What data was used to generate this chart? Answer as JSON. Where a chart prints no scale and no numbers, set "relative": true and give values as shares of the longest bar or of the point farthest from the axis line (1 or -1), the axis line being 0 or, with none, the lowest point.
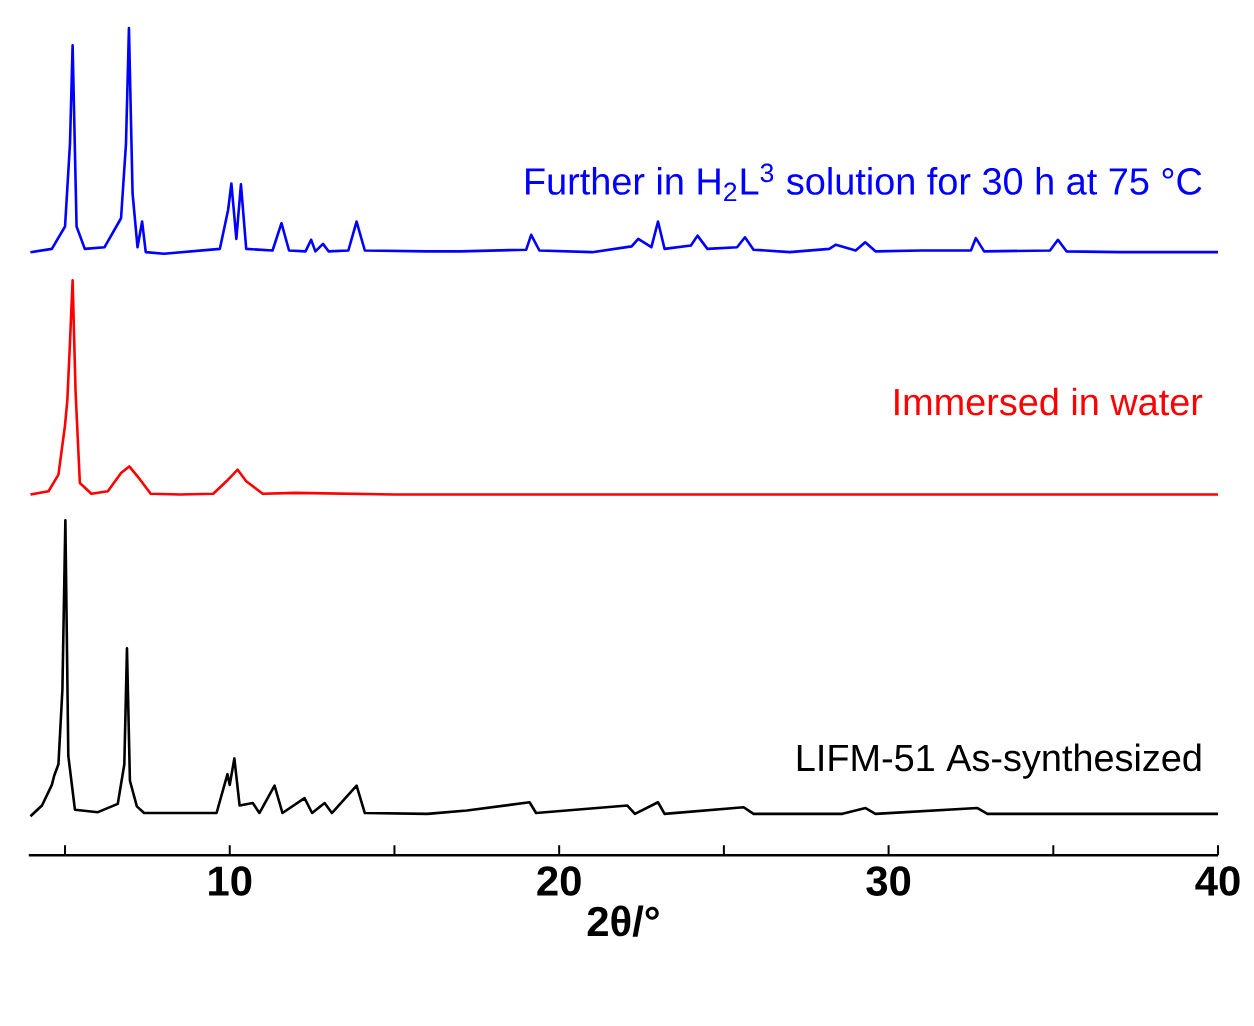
{
  "chart_data": {
    "type": "line",
    "relative": true,
    "xlabel": "2θ/°",
    "xlim": [
      3.9,
      40
    ],
    "xticks": [
      {
        "value": 5,
        "label": null
      },
      10,
      {
        "value": 15,
        "label": null
      },
      20,
      {
        "value": 25,
        "label": null
      },
      30,
      {
        "value": 35,
        "label": null
      },
      40
    ],
    "grid": false,
    "legend": false,
    "marker": "none",
    "line_style": "solid",
    "series": [
      {
        "name": "LIFM-51 As-synthesized",
        "color": "#000000",
        "x": [
          3.95,
          4.3,
          4.6,
          4.67,
          4.8,
          4.92,
          5.01,
          5.1,
          5.3,
          6.0,
          6.6,
          6.8,
          6.88,
          6.97,
          7.18,
          7.4,
          9.6,
          9.93,
          10.0,
          10.14,
          10.3,
          10.7,
          10.9,
          11.36,
          11.6,
          12.27,
          12.5,
          12.88,
          13.1,
          13.85,
          14.1,
          16,
          17.2,
          19.1,
          19.3,
          22.07,
          22.3,
          23.0,
          23.2,
          25.6,
          25.9,
          28.6,
          29.3,
          29.6,
          32.7,
          33,
          40
        ],
        "values": [
          0.047,
          0.06,
          0.085,
          0.096,
          0.11,
          0.2,
          0.405,
          0.12,
          0.055,
          0.052,
          0.062,
          0.11,
          0.25,
          0.09,
          0.059,
          0.051,
          0.051,
          0.098,
          0.085,
          0.117,
          0.06,
          0.063,
          0.051,
          0.084,
          0.051,
          0.069,
          0.051,
          0.063,
          0.051,
          0.084,
          0.051,
          0.05,
          0.054,
          0.064,
          0.051,
          0.06,
          0.05,
          0.064,
          0.05,
          0.058,
          0.05,
          0.05,
          0.057,
          0.05,
          0.057,
          0.05,
          0.05
        ]
      },
      {
        "name": "Immersed in water",
        "color": "#ff0000",
        "x": [
          3.95,
          4.5,
          4.8,
          5.0,
          5.07,
          5.15,
          5.23,
          5.32,
          5.45,
          5.8,
          6.3,
          6.7,
          6.95,
          7.2,
          7.6,
          8.5,
          9.5,
          9.9,
          10.24,
          10.5,
          11,
          12,
          15,
          20,
          25,
          30,
          35,
          40
        ],
        "values": [
          0.436,
          0.44,
          0.46,
          0.52,
          0.55,
          0.62,
          0.695,
          0.56,
          0.45,
          0.437,
          0.44,
          0.462,
          0.47,
          0.458,
          0.437,
          0.436,
          0.437,
          0.452,
          0.466,
          0.452,
          0.437,
          0.438,
          0.436,
          0.436,
          0.436,
          0.436,
          0.436,
          0.436
        ]
      },
      {
        "name": "Further in H$_{2}$L$^{3}$ solution for 30 h at 75 °C",
        "color": "#0000ff",
        "x": [
          3.95,
          4.6,
          5.0,
          5.15,
          5.23,
          5.35,
          5.6,
          6.2,
          6.7,
          6.85,
          6.94,
          7.05,
          7.2,
          7.34,
          7.45,
          8,
          9.7,
          9.95,
          10.05,
          10.2,
          10.34,
          10.5,
          11.3,
          11.57,
          11.8,
          12.3,
          12.47,
          12.6,
          12.83,
          13.0,
          13.6,
          13.85,
          14.1,
          16,
          17,
          19,
          19.15,
          19.4,
          21,
          22.2,
          22.4,
          22.8,
          23.0,
          23.2,
          24.0,
          24.2,
          24.5,
          25.4,
          25.64,
          25.9,
          27,
          28.2,
          28.4,
          29.0,
          29.29,
          29.6,
          31,
          32.5,
          32.65,
          32.9,
          34.9,
          35.14,
          35.4,
          37,
          40
        ],
        "values": [
          0.729,
          0.733,
          0.76,
          0.86,
          0.979,
          0.76,
          0.733,
          0.735,
          0.77,
          0.86,
          1.0,
          0.8,
          0.735,
          0.766,
          0.729,
          0.727,
          0.733,
          0.78,
          0.812,
          0.745,
          0.811,
          0.733,
          0.731,
          0.764,
          0.731,
          0.73,
          0.744,
          0.73,
          0.739,
          0.73,
          0.731,
          0.766,
          0.731,
          0.73,
          0.73,
          0.732,
          0.75,
          0.731,
          0.729,
          0.736,
          0.745,
          0.735,
          0.766,
          0.733,
          0.737,
          0.749,
          0.733,
          0.735,
          0.747,
          0.732,
          0.729,
          0.733,
          0.738,
          0.731,
          0.741,
          0.73,
          0.731,
          0.731,
          0.746,
          0.73,
          0.731,
          0.744,
          0.73,
          0.729,
          0.729
        ]
      }
    ]
  }
}
